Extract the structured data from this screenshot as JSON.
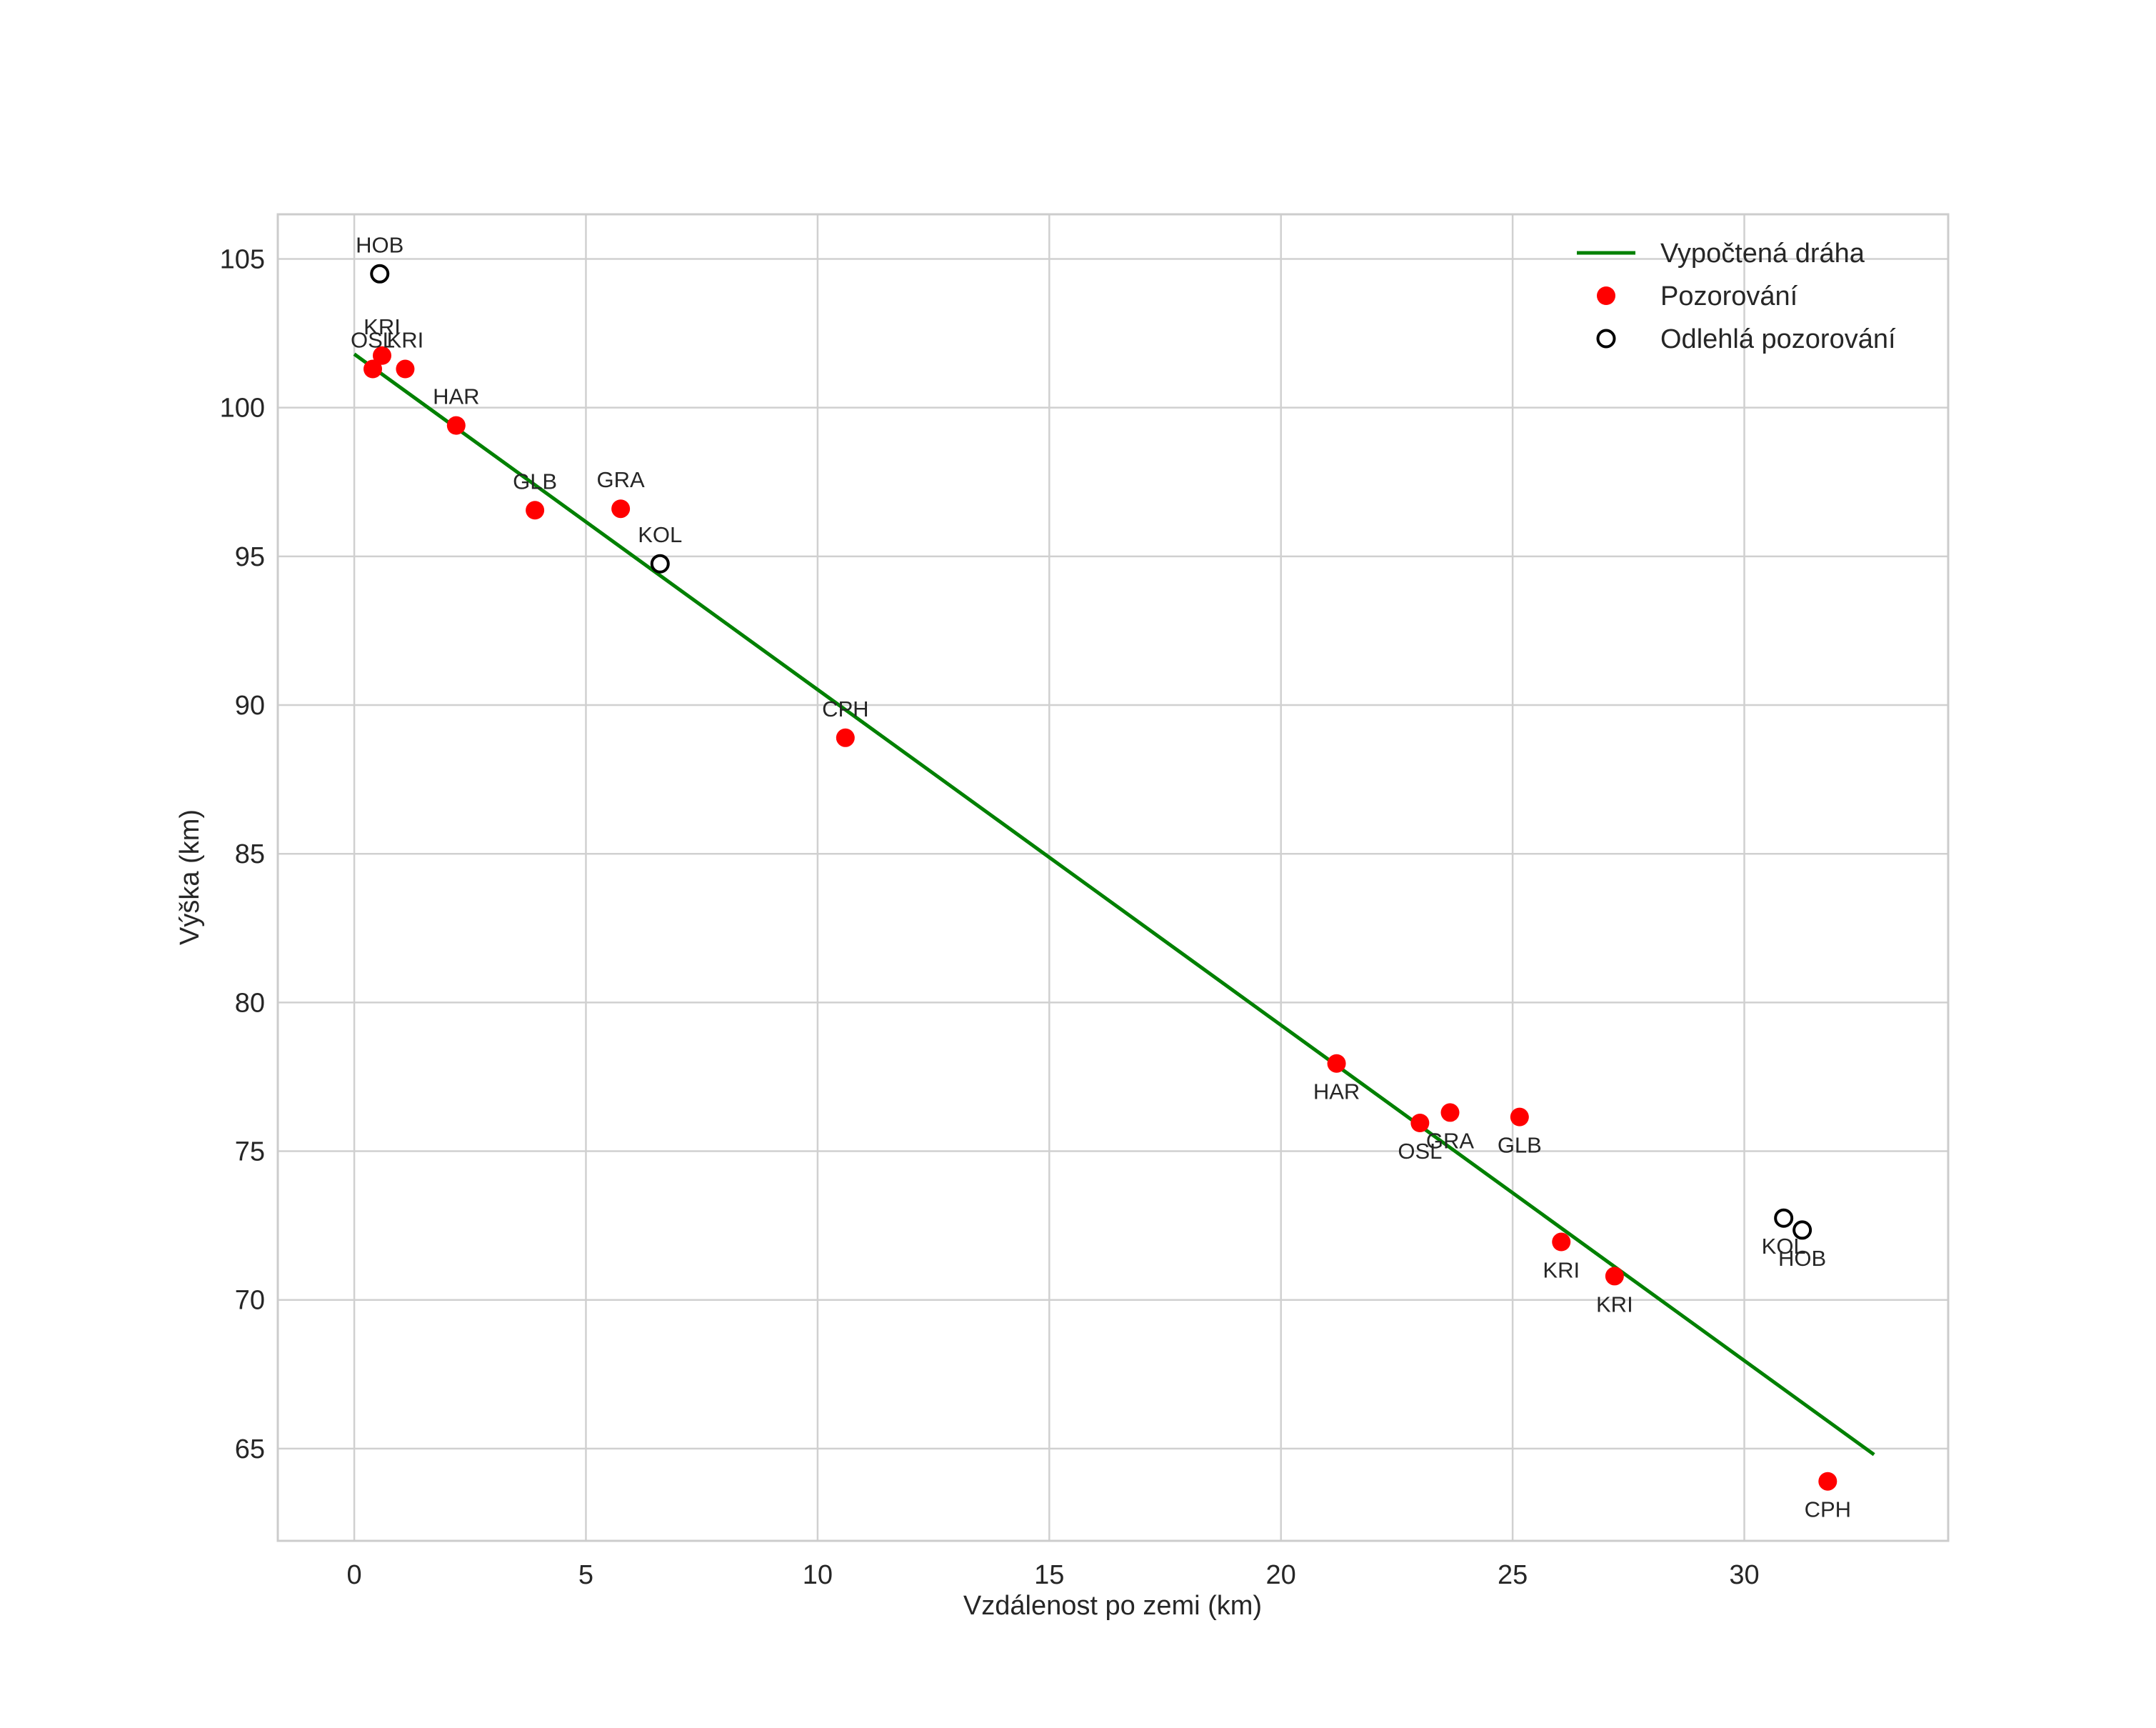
{
  "chart_data": {
    "type": "scatter",
    "title": "",
    "xlabel": "Vzdálenost po zemi (km)",
    "ylabel": "Výška (km)",
    "xlim": [
      -1.65,
      34.4
    ],
    "ylim": [
      61.9,
      106.5
    ],
    "xticks": [
      0,
      5,
      10,
      15,
      20,
      25,
      30
    ],
    "yticks": [
      65,
      70,
      75,
      80,
      85,
      90,
      95,
      100,
      105
    ],
    "grid": true,
    "legend_position": "top-right",
    "colors": {
      "trajectory": "#008000",
      "observation": "#ff0000",
      "outlier_edge": "#000000",
      "grid": "#d0d0d0",
      "axes_border": "#cccccc",
      "text": "#262626"
    },
    "series": [
      {
        "name": "Vypočtená dráha",
        "kind": "line",
        "x": [
          0.0,
          32.8
        ],
        "y": [
          101.8,
          64.8
        ]
      },
      {
        "name": "Pozorování",
        "kind": "points",
        "points": [
          {
            "x": 0.4,
            "y": 101.3,
            "label": "OSL",
            "label_pos": "above"
          },
          {
            "x": 0.6,
            "y": 101.75,
            "label": "KRI",
            "label_pos": "above"
          },
          {
            "x": 1.1,
            "y": 101.3,
            "label": "KRI",
            "label_pos": "above"
          },
          {
            "x": 2.2,
            "y": 99.4,
            "label": "HAR",
            "label_pos": "above"
          },
          {
            "x": 3.9,
            "y": 96.55,
            "label": "GLB",
            "label_pos": "above"
          },
          {
            "x": 5.75,
            "y": 96.6,
            "label": "GRA",
            "label_pos": "above"
          },
          {
            "x": 10.6,
            "y": 88.9,
            "label": "CPH",
            "label_pos": "above"
          },
          {
            "x": 21.2,
            "y": 77.95,
            "label": "HAR",
            "label_pos": "below"
          },
          {
            "x": 23.0,
            "y": 75.95,
            "label": "OSL",
            "label_pos": "below"
          },
          {
            "x": 23.65,
            "y": 76.3,
            "label": "GRA",
            "label_pos": "below"
          },
          {
            "x": 25.15,
            "y": 76.15,
            "label": "GLB",
            "label_pos": "below"
          },
          {
            "x": 26.05,
            "y": 71.95,
            "label": "KRI",
            "label_pos": "below"
          },
          {
            "x": 27.2,
            "y": 70.8,
            "label": "KRI",
            "label_pos": "below"
          },
          {
            "x": 31.8,
            "y": 63.9,
            "label": "CPH",
            "label_pos": "below"
          }
        ]
      },
      {
        "name": "Odlehlá pozorování",
        "kind": "points",
        "points": [
          {
            "x": 0.55,
            "y": 104.5,
            "label": "HOB",
            "label_pos": "above"
          },
          {
            "x": 6.6,
            "y": 94.75,
            "label": "KOL",
            "label_pos": "above"
          },
          {
            "x": 30.85,
            "y": 72.75,
            "label": "KOL",
            "label_pos": "below"
          },
          {
            "x": 31.25,
            "y": 72.35,
            "label": "HOB",
            "label_pos": "below"
          }
        ]
      }
    ]
  }
}
